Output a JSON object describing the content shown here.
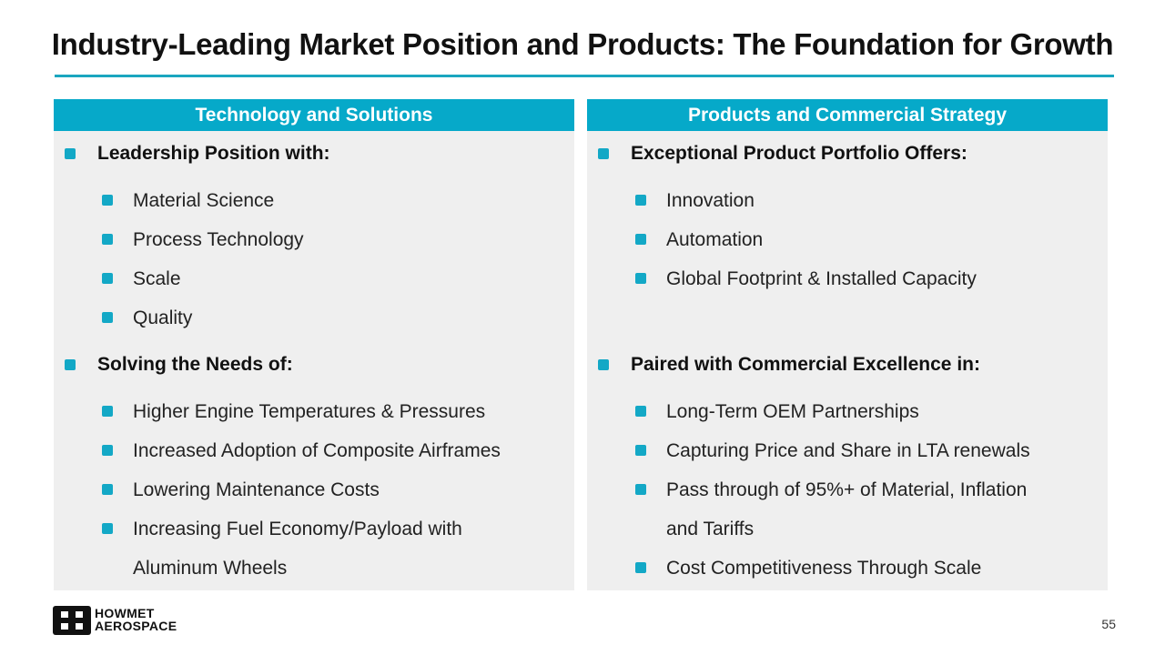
{
  "title": "Industry-Leading Market Position and Products: The Foundation for Growth",
  "left": {
    "header": "Technology and Solutions",
    "section1": "Leadership Position with:",
    "section1_items": [
      "Material Science",
      "Process Technology",
      "Scale",
      "Quality"
    ],
    "section2": "Solving the Needs of:",
    "section2_items": [
      "Higher Engine Temperatures & Pressures",
      "Increased Adoption of Composite Airframes",
      "Lowering Maintenance Costs",
      "Increasing Fuel Economy/Payload with",
      "Aluminum Wheels"
    ]
  },
  "right": {
    "header": "Products and Commercial Strategy",
    "section1": "Exceptional Product Portfolio Offers:",
    "section1_items": [
      "Innovation",
      "Automation",
      "Global Footprint & Installed Capacity"
    ],
    "section2": "Paired with Commercial Excellence in:",
    "section2_items": [
      "Long-Term OEM Partnerships",
      "Capturing Price and Share in LTA renewals",
      "Pass through of 95%+ of Material, Inflation",
      "and Tariffs",
      "Cost Competitiveness Through Scale"
    ]
  },
  "logo": {
    "line1": "HOWMET",
    "line2": "AEROSPACE"
  },
  "page_number": "55",
  "colors": {
    "accent": "#06a9c9",
    "panel_bg": "#efefef"
  }
}
